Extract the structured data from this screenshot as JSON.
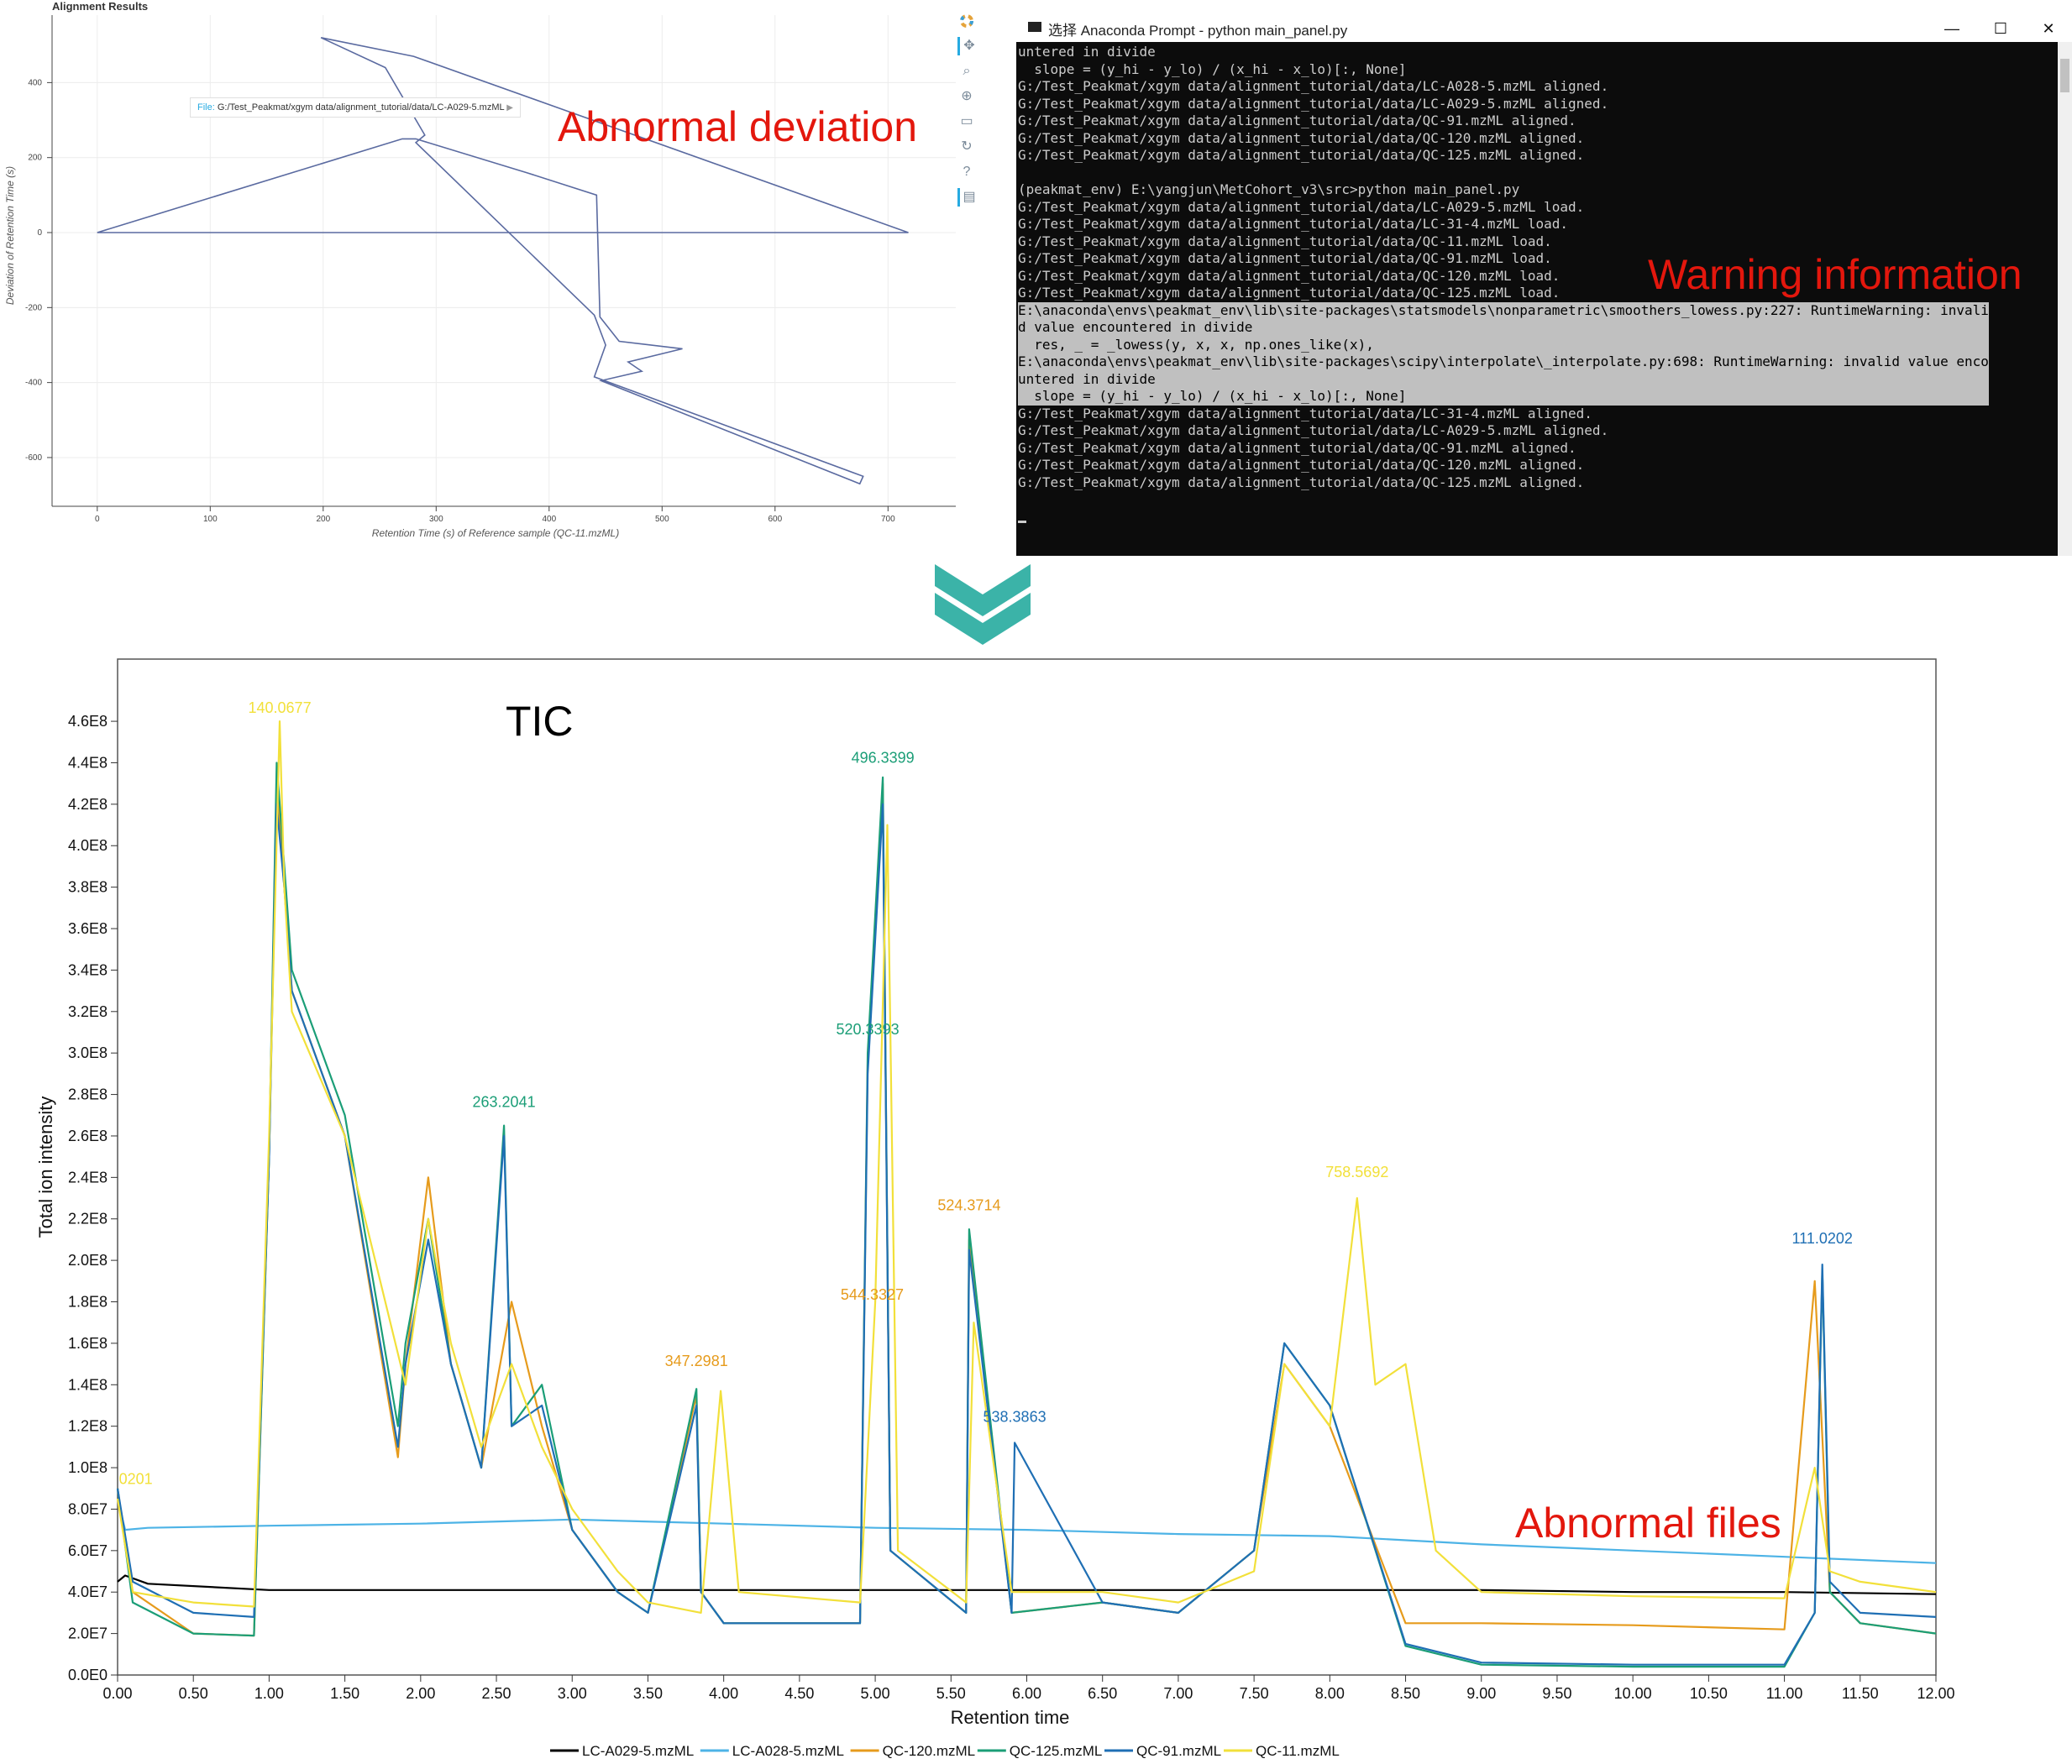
{
  "alignment_plot": {
    "title": "Alignment Results",
    "tooltip": {
      "label": "File:",
      "value": "G:/Test_Peakmat/xgym data/alignment_tutorial/data/LC-A029-5.mzML"
    },
    "toolbar_icons": [
      "bokeh-logo-icon",
      "pan-icon",
      "box-zoom-icon",
      "wheel-zoom-icon",
      "save-icon",
      "reset-icon",
      "help-icon",
      "hover-icon"
    ],
    "line_color": "#5a6aa0"
  },
  "console": {
    "title": "选择 Anaconda Prompt - python  main_panel.py",
    "minimize": "—",
    "maximize": "☐",
    "close": "✕",
    "lines": [
      "untered in divide",
      "  slope = (y_hi - y_lo) / (x_hi - x_lo)[:, None]",
      "G:/Test_Peakmat/xgym data/alignment_tutorial/data/LC-A028-5.mzML aligned.",
      "G:/Test_Peakmat/xgym data/alignment_tutorial/data/LC-A029-5.mzML aligned.",
      "G:/Test_Peakmat/xgym data/alignment_tutorial/data/QC-91.mzML aligned.",
      "G:/Test_Peakmat/xgym data/alignment_tutorial/data/QC-120.mzML aligned.",
      "G:/Test_Peakmat/xgym data/alignment_tutorial/data/QC-125.mzML aligned.",
      "",
      "(peakmat_env) E:\\yangjun\\MetCohort_v3\\src>python main_panel.py",
      "G:/Test_Peakmat/xgym data/alignment_tutorial/data/LC-A029-5.mzML load.",
      "G:/Test_Peakmat/xgym data/alignment_tutorial/data/LC-31-4.mzML load.",
      "G:/Test_Peakmat/xgym data/alignment_tutorial/data/QC-11.mzML load.",
      "G:/Test_Peakmat/xgym data/alignment_tutorial/data/QC-91.mzML load.",
      "G:/Test_Peakmat/xgym data/alignment_tutorial/data/QC-120.mzML load.",
      "G:/Test_Peakmat/xgym data/alignment_tutorial/data/QC-125.mzML load.",
      "E:\\anaconda\\envs\\peakmat_env\\lib\\site-packages\\statsmodels\\nonparametric\\smoothers_lowess.py:227: RuntimeWarning: invali",
      "d value encountered in divide",
      "  res, _ = _lowess(y, x, x, np.ones_like(x),",
      "E:\\anaconda\\envs\\peakmat_env\\lib\\site-packages\\scipy\\interpolate\\_interpolate.py:698: RuntimeWarning: invalid value enco",
      "untered in divide",
      "  slope = (y_hi - y_lo) / (x_hi - x_lo)[:, None]",
      "G:/Test_Peakmat/xgym data/alignment_tutorial/data/LC-31-4.mzML aligned.",
      "G:/Test_Peakmat/xgym data/alignment_tutorial/data/LC-A029-5.mzML aligned.",
      "G:/Test_Peakmat/xgym data/alignment_tutorial/data/QC-91.mzML aligned.",
      "G:/Test_Peakmat/xgym data/alignment_tutorial/data/QC-120.mzML aligned.",
      "G:/Test_Peakmat/xgym data/alignment_tutorial/data/QC-125.mzML aligned."
    ]
  },
  "annotations": {
    "abnormal_deviation": "Abnormal deviation",
    "warning_information": "Warning information",
    "tic": "TIC",
    "abnormal_files": "Abnormal files"
  },
  "colors": {
    "annotation": "#e3170d",
    "arrow": "#3bb3a8"
  },
  "chart_data": [
    {
      "type": "line",
      "title": "Alignment Results",
      "xlabel": "Retention Time (s) of Reference sample (QC-11.mzML)",
      "ylabel": "Deviation of Retention Time (s)",
      "xlim": [
        -40,
        760
      ],
      "ylim": [
        -730,
        580
      ],
      "xticks": [
        0,
        100,
        200,
        300,
        400,
        500,
        600,
        700
      ],
      "yticks": [
        400,
        200,
        0,
        -200,
        -400,
        -600
      ],
      "grid": true,
      "x": [
        198,
        280,
        718,
        0,
        400,
        718,
        0,
        270,
        282,
        380,
        442,
        445,
        462,
        518,
        470,
        482,
        446,
        675,
        678,
        440,
        450,
        440,
        282,
        290,
        255,
        198
      ],
      "y": [
        520,
        470,
        0,
        0,
        0,
        0,
        0,
        250,
        250,
        160,
        100,
        -225,
        -290,
        -310,
        -345,
        -370,
        -395,
        -670,
        -650,
        -385,
        -300,
        -220,
        240,
        260,
        440,
        520
      ]
    },
    {
      "type": "line",
      "title": "",
      "xlabel": "Retention time",
      "ylabel": "Total ion intensity",
      "xlim": [
        0,
        12
      ],
      "ylim": [
        0,
        490000000
      ],
      "xticks": [
        "0.00",
        "0.50",
        "1.00",
        "1.50",
        "2.00",
        "2.50",
        "3.00",
        "3.50",
        "4.00",
        "4.50",
        "5.00",
        "5.50",
        "6.00",
        "6.50",
        "7.00",
        "7.50",
        "8.00",
        "8.50",
        "9.00",
        "9.50",
        "10.00",
        "10.50",
        "11.00",
        "11.50",
        "12.00"
      ],
      "yticks": [
        "0.0E0",
        "2.0E7",
        "4.0E7",
        "6.0E7",
        "8.0E7",
        "1.0E8",
        "1.2E8",
        "1.4E8",
        "1.6E8",
        "1.8E8",
        "2.0E8",
        "2.2E8",
        "2.4E8",
        "2.6E8",
        "2.8E8",
        "3.0E8",
        "3.2E8",
        "3.4E8",
        "3.6E8",
        "3.8E8",
        "4.0E8",
        "4.2E8",
        "4.4E8",
        "4.6E8"
      ],
      "legend_position": "bottom",
      "series": [
        {
          "name": "LC-A029-5.mzML",
          "color": "#000000",
          "x": [
            0,
            0.05,
            0.2,
            1.0,
            2.0,
            3.0,
            4.0,
            5.0,
            6.0,
            7.0,
            8.0,
            9.0,
            10.0,
            11.0,
            12.0
          ],
          "y": [
            45000000,
            48000000,
            44000000,
            41000000,
            41000000,
            41000000,
            41000000,
            41000000,
            41000000,
            41000000,
            41000000,
            41000000,
            40000000,
            40000000,
            39000000
          ]
        },
        {
          "name": "LC-A028-5.mzML",
          "color": "#4db3e6",
          "x": [
            0,
            0.05,
            0.2,
            1.0,
            2.0,
            3.0,
            4.0,
            5.0,
            6.0,
            7.0,
            8.0,
            9.0,
            10.0,
            11.0,
            12.0
          ],
          "y": [
            85000000,
            70000000,
            71000000,
            72000000,
            73000000,
            75000000,
            73000000,
            71000000,
            70000000,
            68000000,
            67000000,
            63000000,
            60000000,
            57000000,
            54000000
          ]
        },
        {
          "name": "QC-120.mzML",
          "color": "#e69b1c",
          "x": [
            0,
            0.1,
            0.5,
            0.9,
            1.0,
            1.05,
            1.1,
            1.15,
            1.5,
            1.85,
            1.9,
            2.05,
            2.2,
            2.4,
            2.6,
            2.8,
            3.0,
            3.3,
            3.5,
            3.82,
            3.85,
            4.0,
            4.9,
            4.95,
            5.05,
            5.1,
            5.6,
            5.62,
            5.9,
            6.5,
            7.0,
            7.5,
            7.7,
            8.0,
            8.5,
            9.0,
            10.0,
            11.0,
            11.2,
            11.3,
            11.5,
            12.0
          ],
          "y": [
            90000000,
            40000000,
            20000000,
            19000000,
            250000000,
            430000000,
            380000000,
            330000000,
            260000000,
            105000000,
            150000000,
            240000000,
            150000000,
            100000000,
            180000000,
            120000000,
            70000000,
            40000000,
            30000000,
            135000000,
            40000000,
            25000000,
            25000000,
            295000000,
            430000000,
            60000000,
            30000000,
            210000000,
            30000000,
            35000000,
            30000000,
            60000000,
            150000000,
            120000000,
            25000000,
            25000000,
            24000000,
            22000000,
            190000000,
            40000000,
            25000000,
            20000000
          ]
        },
        {
          "name": "QC-125.mzML",
          "color": "#1b9e77",
          "x": [
            0,
            0.1,
            0.5,
            0.9,
            1.0,
            1.05,
            1.1,
            1.15,
            1.5,
            1.85,
            1.9,
            2.05,
            2.2,
            2.4,
            2.55,
            2.6,
            2.8,
            3.0,
            3.3,
            3.5,
            3.82,
            3.85,
            4.0,
            4.9,
            4.95,
            5.05,
            5.1,
            5.6,
            5.62,
            5.9,
            6.5,
            7.0,
            7.5,
            7.7,
            8.0,
            8.5,
            9.0,
            10.0,
            11.0,
            11.2,
            11.25,
            11.3,
            11.5,
            12.0
          ],
          "y": [
            90000000,
            35000000,
            20000000,
            19000000,
            250000000,
            440000000,
            390000000,
            340000000,
            270000000,
            120000000,
            160000000,
            220000000,
            150000000,
            100000000,
            265000000,
            120000000,
            140000000,
            70000000,
            40000000,
            30000000,
            138000000,
            40000000,
            25000000,
            25000000,
            300000000,
            433000000,
            60000000,
            30000000,
            215000000,
            30000000,
            35000000,
            30000000,
            60000000,
            160000000,
            130000000,
            14000000,
            5000000,
            4000000,
            4000000,
            30000000,
            195000000,
            40000000,
            25000000,
            20000000
          ]
        },
        {
          "name": "QC-91.mzML",
          "color": "#1f6fb4",
          "x": [
            0,
            0.1,
            0.5,
            0.9,
            1.0,
            1.05,
            1.1,
            1.15,
            1.5,
            1.85,
            1.9,
            2.05,
            2.2,
            2.4,
            2.55,
            2.6,
            2.8,
            3.0,
            3.3,
            3.5,
            3.82,
            3.85,
            4.0,
            4.9,
            4.95,
            5.05,
            5.1,
            5.6,
            5.62,
            5.9,
            5.92,
            6.5,
            7.0,
            7.5,
            7.7,
            8.0,
            8.5,
            9.0,
            10.0,
            11.0,
            11.2,
            11.25,
            11.3,
            11.5,
            12.0
          ],
          "y": [
            90000000,
            45000000,
            30000000,
            28000000,
            250000000,
            420000000,
            380000000,
            330000000,
            260000000,
            110000000,
            150000000,
            210000000,
            150000000,
            100000000,
            260000000,
            120000000,
            130000000,
            70000000,
            40000000,
            30000000,
            130000000,
            40000000,
            25000000,
            25000000,
            290000000,
            420000000,
            60000000,
            30000000,
            205000000,
            30000000,
            112000000,
            35000000,
            30000000,
            60000000,
            160000000,
            130000000,
            15000000,
            6000000,
            5000000,
            5000000,
            30000000,
            198000000,
            45000000,
            30000000,
            28000000
          ]
        },
        {
          "name": "QC-11.mzML",
          "color": "#f2e03a",
          "x": [
            0,
            0.1,
            0.5,
            0.9,
            1.0,
            1.07,
            1.1,
            1.15,
            1.5,
            1.9,
            2.05,
            2.2,
            2.4,
            2.6,
            2.8,
            3.0,
            3.3,
            3.5,
            3.85,
            3.98,
            4.1,
            4.9,
            5.0,
            5.08,
            5.15,
            5.6,
            5.65,
            5.9,
            6.5,
            7.0,
            7.5,
            7.7,
            8.0,
            8.18,
            8.3,
            8.5,
            8.7,
            9.0,
            10.0,
            11.0,
            11.2,
            11.3,
            11.5,
            12.0
          ],
          "y": [
            85000000,
            40000000,
            35000000,
            33000000,
            260000000,
            460000000,
            380000000,
            320000000,
            260000000,
            140000000,
            220000000,
            160000000,
            110000000,
            150000000,
            110000000,
            80000000,
            50000000,
            35000000,
            30000000,
            137000000,
            40000000,
            35000000,
            180000000,
            410000000,
            60000000,
            35000000,
            170000000,
            40000000,
            40000000,
            35000000,
            50000000,
            150000000,
            120000000,
            230000000,
            140000000,
            150000000,
            60000000,
            40000000,
            38000000,
            37000000,
            100000000,
            50000000,
            45000000,
            40000000
          ]
        }
      ],
      "annotations": [
        {
          "text": "140.0677",
          "x": 1.07,
          "y": 460000000,
          "color": "#f2e03a"
        },
        {
          "text": "496.3399",
          "x": 5.05,
          "y": 436000000,
          "color": "#1b9e77"
        },
        {
          "text": "263.2041",
          "x": 2.55,
          "y": 270000000,
          "color": "#1b9e77"
        },
        {
          "text": "520.3393",
          "x": 4.95,
          "y": 305000000,
          "color": "#1b9e77"
        },
        {
          "text": "524.3714",
          "x": 5.62,
          "y": 220000000,
          "color": "#e69b1c"
        },
        {
          "text": "544.3327",
          "x": 4.98,
          "y": 177000000,
          "color": "#e69b1c"
        },
        {
          "text": "347.2981",
          "x": 3.82,
          "y": 145000000,
          "color": "#e69b1c"
        },
        {
          "text": "538.3863",
          "x": 5.92,
          "y": 118000000,
          "color": "#1f6fb4"
        },
        {
          "text": "758.5692",
          "x": 8.18,
          "y": 236000000,
          "color": "#f2e03a"
        },
        {
          "text": "111.0202",
          "x": 11.25,
          "y": 204000000,
          "color": "#1f6fb4"
        },
        {
          "text": "0201",
          "x": 0.12,
          "y": 88000000,
          "color": "#f2e03a"
        }
      ]
    }
  ]
}
